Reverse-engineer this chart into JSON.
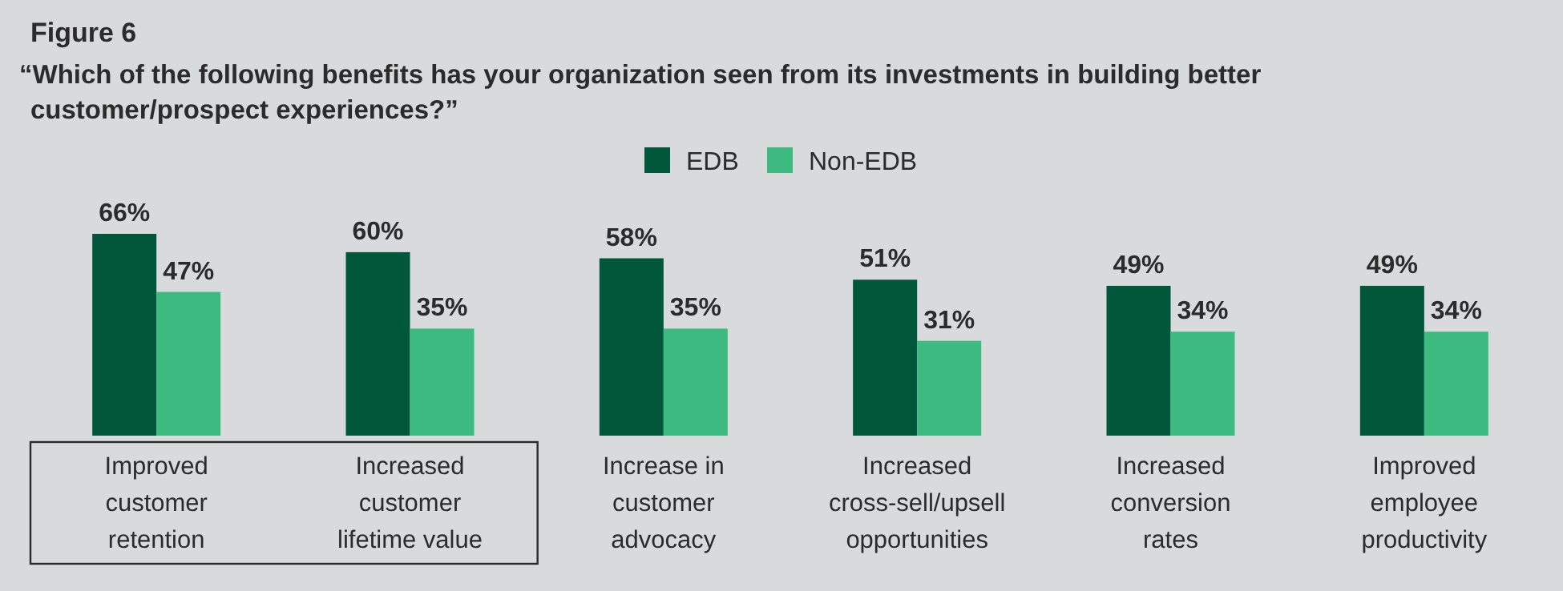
{
  "chart_data": {
    "type": "bar",
    "title": "Figure 6",
    "subtitle": "“Which of the following benefits has your organization seen from its investments in building better\ncustomer/prospect experiences?”",
    "categories": [
      "Improved\ncustomer\nretention",
      "Increased\ncustomer\nlifetime value",
      "Increase in\ncustomer\nadvocacy",
      "Increased\ncross-sell/upsell\nopportunities",
      "Increased\nconversion\nrates",
      "Improved\nemployee\nproductivity"
    ],
    "series": [
      {
        "name": "EDB",
        "color": "#00573a",
        "values": [
          66,
          60,
          58,
          51,
          49,
          49
        ],
        "value_labels": [
          "66%",
          "60%",
          "58%",
          "51%",
          "49%",
          "49%"
        ]
      },
      {
        "name": "Non-EDB",
        "color": "#3dba80",
        "values": [
          47,
          35,
          35,
          31,
          34,
          34
        ],
        "value_labels": [
          "47%",
          "35%",
          "35%",
          "31%",
          "34%",
          "34%"
        ]
      }
    ],
    "legend": "top"
  }
}
